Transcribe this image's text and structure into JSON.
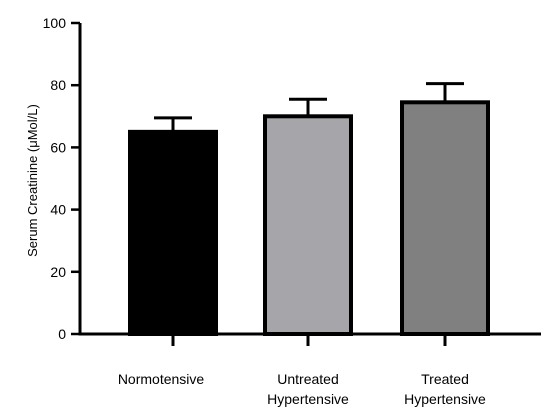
{
  "chart_data": {
    "type": "bar",
    "title": "",
    "xlabel": "",
    "ylabel": "Serum Creatinine  (μMol/L)",
    "ylim": [
      0,
      100
    ],
    "yticks": [
      0,
      20,
      40,
      60,
      80,
      100
    ],
    "grid": false,
    "legend": "none",
    "categories": [
      [
        "Normotensive"
      ],
      [
        "Untreated",
        "Hypertensive"
      ],
      [
        "Treated",
        "Hypertensive"
      ]
    ],
    "values": [
      65,
      70,
      74.5
    ],
    "errors": [
      4.5,
      5.5,
      6
    ],
    "colors": [
      "#000000",
      "#a6a6aa",
      "#808080"
    ]
  }
}
